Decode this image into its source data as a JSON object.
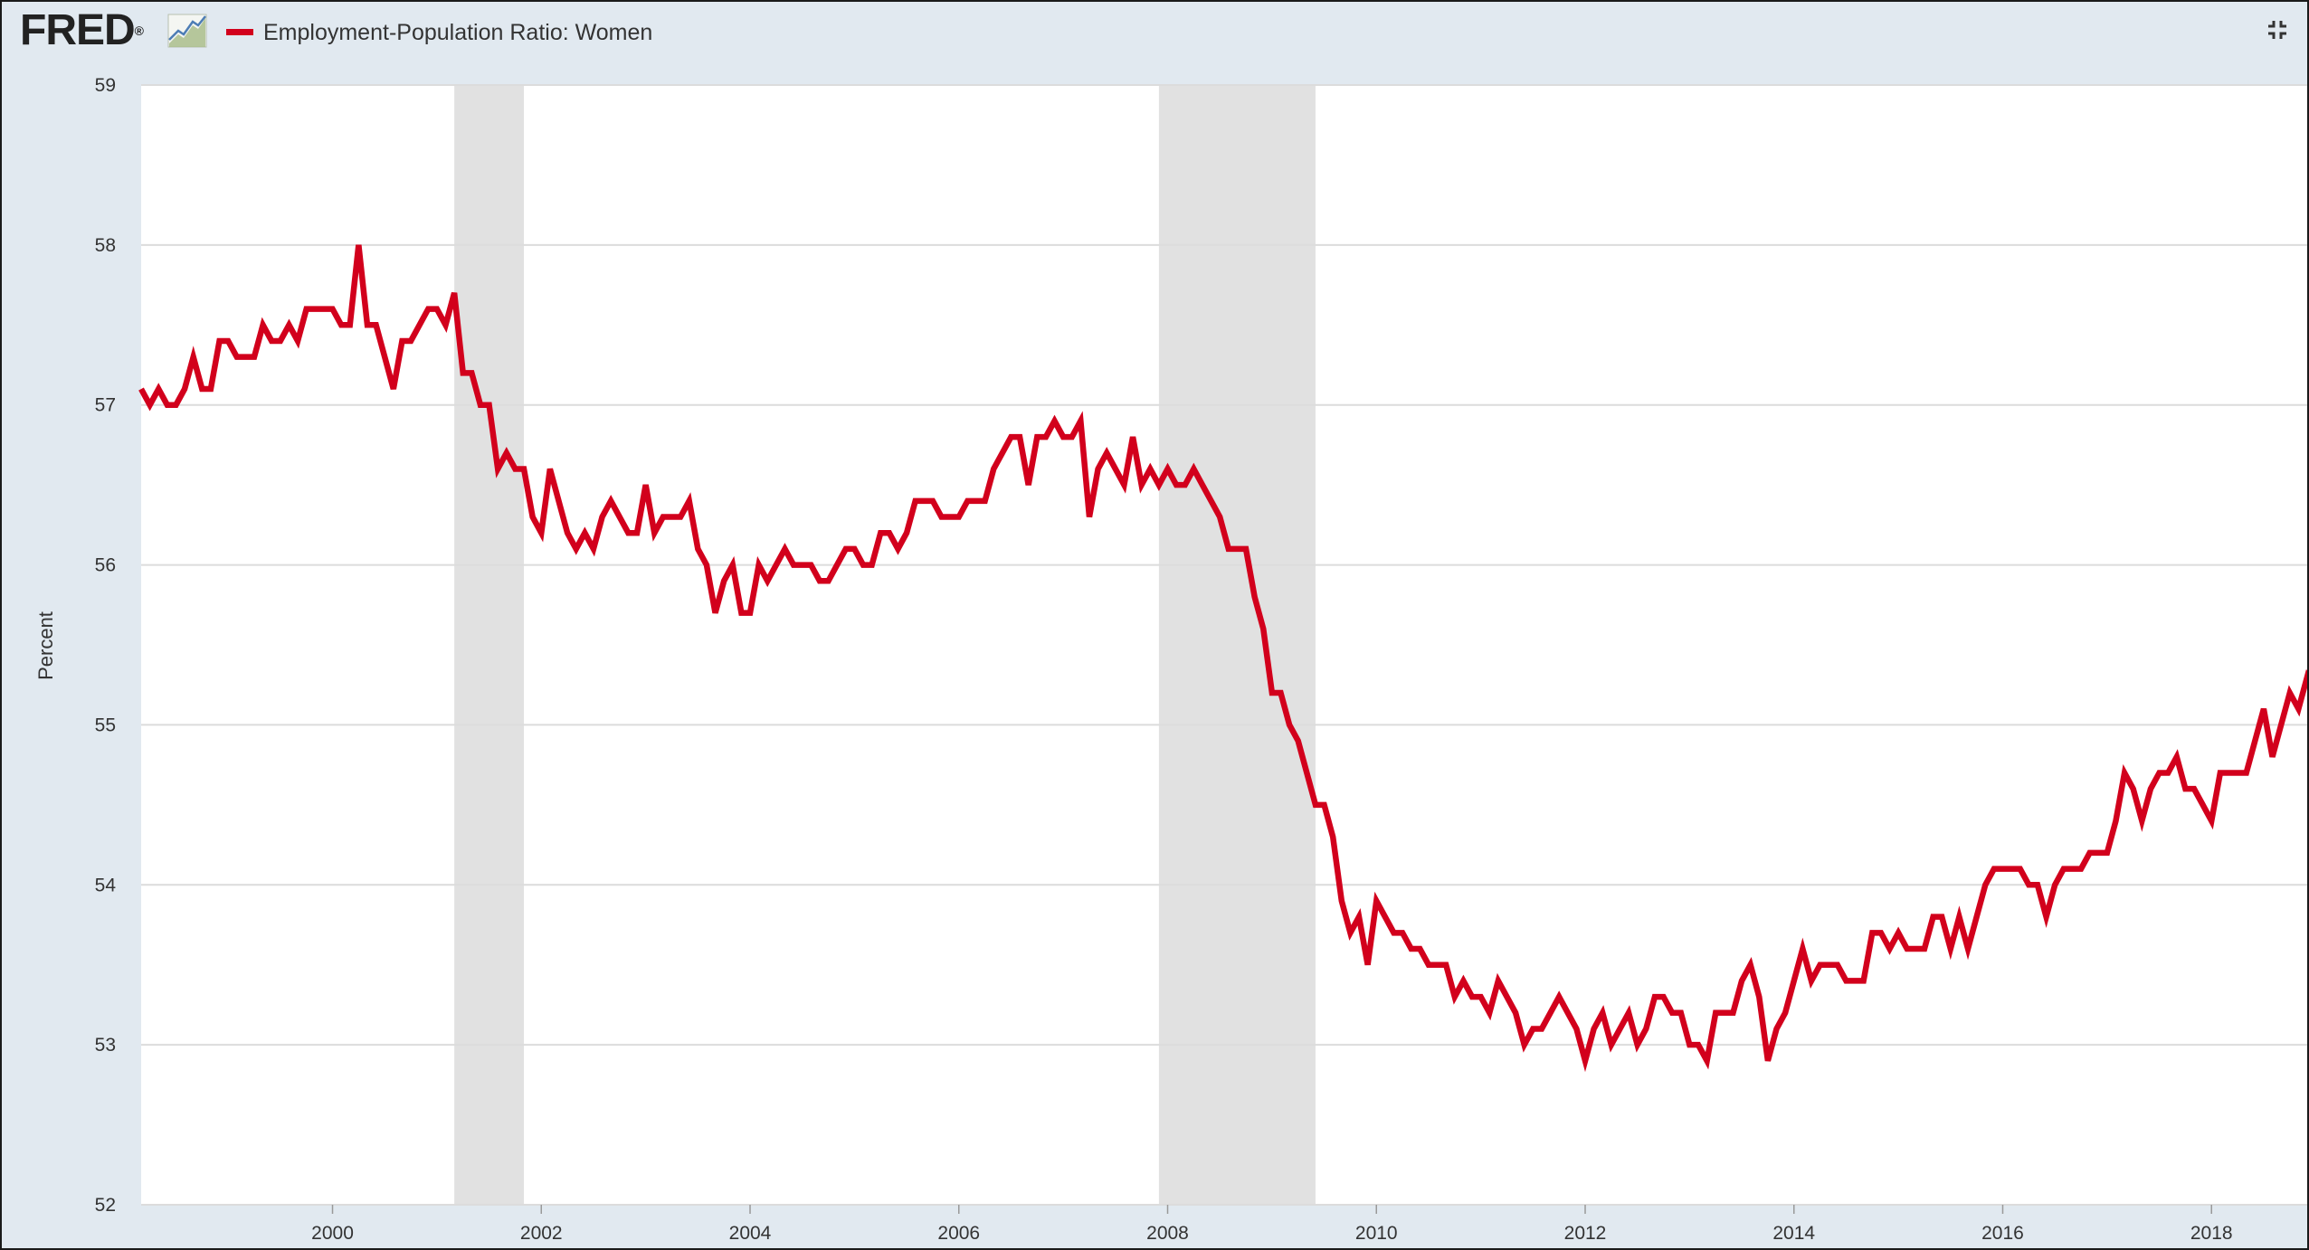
{
  "header": {
    "logo_text": "FRED",
    "logo_mark": "®",
    "graph_icon": "line-chart-icon",
    "collapse_icon": "collapse-arrows-icon"
  },
  "chart_data": {
    "type": "line",
    "title": "",
    "legend": {
      "entries": [
        "Employment-Population Ratio: Women"
      ],
      "placement": "top-left"
    },
    "xlabel": "",
    "ylabel": "Percent",
    "xlim": [
      "1998-03",
      "2018-12"
    ],
    "ylim": [
      52,
      59
    ],
    "x_ticks": [
      "2000",
      "2002",
      "2004",
      "2006",
      "2008",
      "2010",
      "2012",
      "2014",
      "2016",
      "2018"
    ],
    "y_ticks": [
      "52",
      "53",
      "54",
      "55",
      "56",
      "57",
      "58",
      "59"
    ],
    "grid": "horizontal",
    "recessions": [
      {
        "start": "2001-03",
        "end": "2001-11"
      },
      {
        "start": "2007-12",
        "end": "2009-06"
      }
    ],
    "colors": {
      "series": "#d2001c",
      "recession": "#e1e1e1",
      "frame": "#e1e9f0",
      "grid": "#dcdcdc"
    },
    "series": [
      {
        "name": "Employment-Population Ratio: Women",
        "start": "1998-03",
        "frequency": "monthly",
        "values": [
          57.1,
          57.0,
          57.1,
          57.0,
          57.0,
          57.1,
          57.3,
          57.1,
          57.1,
          57.4,
          57.4,
          57.3,
          57.3,
          57.3,
          57.5,
          57.4,
          57.4,
          57.5,
          57.4,
          57.6,
          57.6,
          57.6,
          57.6,
          57.5,
          57.5,
          58.0,
          57.5,
          57.5,
          57.3,
          57.1,
          57.4,
          57.4,
          57.5,
          57.6,
          57.6,
          57.5,
          57.7,
          57.2,
          57.2,
          57.0,
          57.0,
          56.6,
          56.7,
          56.6,
          56.6,
          56.3,
          56.2,
          56.6,
          56.4,
          56.2,
          56.1,
          56.2,
          56.1,
          56.3,
          56.4,
          56.3,
          56.2,
          56.2,
          56.5,
          56.2,
          56.3,
          56.3,
          56.3,
          56.4,
          56.1,
          56.0,
          55.7,
          55.9,
          56.0,
          55.7,
          55.7,
          56.0,
          55.9,
          56.0,
          56.1,
          56.0,
          56.0,
          56.0,
          55.9,
          55.9,
          56.0,
          56.1,
          56.1,
          56.0,
          56.0,
          56.2,
          56.2,
          56.1,
          56.2,
          56.4,
          56.4,
          56.4,
          56.3,
          56.3,
          56.3,
          56.4,
          56.4,
          56.4,
          56.6,
          56.7,
          56.8,
          56.8,
          56.5,
          56.8,
          56.8,
          56.9,
          56.8,
          56.8,
          56.9,
          56.3,
          56.6,
          56.7,
          56.6,
          56.5,
          56.8,
          56.5,
          56.6,
          56.5,
          56.6,
          56.5,
          56.5,
          56.6,
          56.5,
          56.4,
          56.3,
          56.1,
          56.1,
          56.1,
          55.8,
          55.6,
          55.2,
          55.2,
          55.0,
          54.9,
          54.7,
          54.5,
          54.5,
          54.3,
          53.9,
          53.7,
          53.8,
          53.5,
          53.9,
          53.8,
          53.7,
          53.7,
          53.6,
          53.6,
          53.5,
          53.5,
          53.5,
          53.3,
          53.4,
          53.3,
          53.3,
          53.2,
          53.4,
          53.3,
          53.2,
          53.0,
          53.1,
          53.1,
          53.2,
          53.3,
          53.2,
          53.1,
          52.9,
          53.1,
          53.2,
          53.0,
          53.1,
          53.2,
          53.0,
          53.1,
          53.3,
          53.3,
          53.2,
          53.2,
          53.0,
          53.0,
          52.9,
          53.2,
          53.2,
          53.2,
          53.4,
          53.5,
          53.3,
          52.9,
          53.1,
          53.2,
          53.4,
          53.6,
          53.4,
          53.5,
          53.5,
          53.5,
          53.4,
          53.4,
          53.4,
          53.7,
          53.7,
          53.6,
          53.7,
          53.6,
          53.6,
          53.6,
          53.8,
          53.8,
          53.6,
          53.8,
          53.6,
          53.8,
          54.0,
          54.1,
          54.1,
          54.1,
          54.1,
          54.0,
          54.0,
          53.8,
          54.0,
          54.1,
          54.1,
          54.1,
          54.2,
          54.2,
          54.2,
          54.4,
          54.7,
          54.6,
          54.4,
          54.6,
          54.7,
          54.7,
          54.8,
          54.6,
          54.6,
          54.5,
          54.4,
          54.7,
          54.7,
          54.7,
          54.7,
          54.9,
          55.1,
          54.8,
          55.0,
          55.2,
          55.1,
          55.3,
          55.2
        ]
      }
    ]
  }
}
